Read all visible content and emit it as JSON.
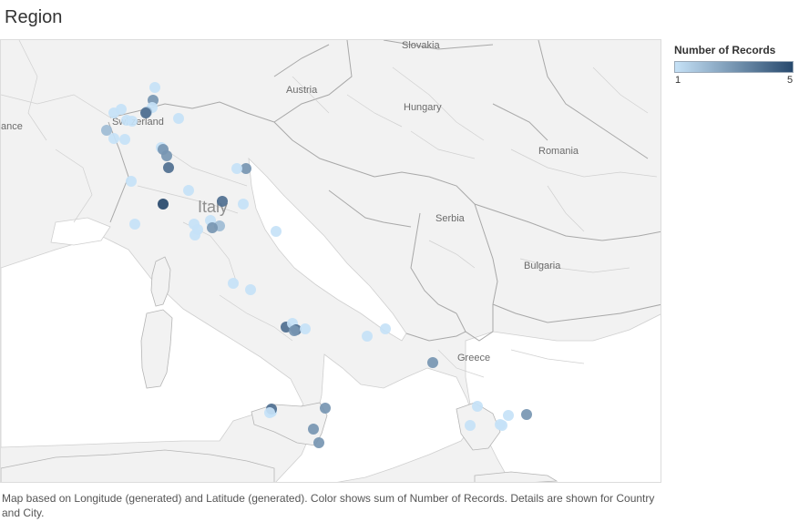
{
  "title": "Region",
  "legend": {
    "title": "Number of Records",
    "min_label": "1",
    "max_label": "5",
    "min": 1,
    "max": 5,
    "color_low": "#c6e2f7",
    "color_high": "#27496d"
  },
  "map": {
    "land_color": "#f2f2f2",
    "sea_color": "#ffffff",
    "border_color": "#b5b5b5",
    "labels": [
      "Slovakia",
      "Austria",
      "Hungary",
      "ance",
      "Switzerland",
      "Romania",
      "Italy",
      "Serbia",
      "Bulgaria",
      "Greece"
    ]
  },
  "points": [
    {
      "value": 1
    },
    {
      "value": 3
    },
    {
      "value": 1
    },
    {
      "value": 2
    },
    {
      "value": 1
    },
    {
      "value": 1
    },
    {
      "value": 1
    },
    {
      "value": 4
    },
    {
      "value": 1
    },
    {
      "value": 1
    },
    {
      "value": 2
    },
    {
      "value": 1
    },
    {
      "value": 1
    },
    {
      "value": 1
    },
    {
      "value": 3
    },
    {
      "value": 3
    },
    {
      "value": 4
    },
    {
      "value": 1
    },
    {
      "value": 1
    },
    {
      "value": 3
    },
    {
      "value": 1
    },
    {
      "value": 1
    },
    {
      "value": 5
    },
    {
      "value": 4
    },
    {
      "value": 1
    },
    {
      "value": 1
    },
    {
      "value": 1
    },
    {
      "value": 2
    },
    {
      "value": 1
    },
    {
      "value": 3
    },
    {
      "value": 1
    },
    {
      "value": 1
    },
    {
      "value": 1
    },
    {
      "value": 1
    },
    {
      "value": 4
    },
    {
      "value": 1
    },
    {
      "value": 4
    },
    {
      "value": 3
    },
    {
      "value": 1
    },
    {
      "value": 1
    },
    {
      "value": 1
    },
    {
      "value": 3
    },
    {
      "value": 1
    },
    {
      "value": 4
    },
    {
      "value": 1
    },
    {
      "value": 3
    },
    {
      "value": 3
    },
    {
      "value": 3
    },
    {
      "value": 1
    },
    {
      "value": 1
    },
    {
      "value": 1
    },
    {
      "value": 1
    },
    {
      "value": 1
    },
    {
      "value": 3
    }
  ],
  "caption": "Map based on Longitude (generated) and Latitude (generated).  Color shows sum of Number of Records.  Details are shown for Country and City."
}
